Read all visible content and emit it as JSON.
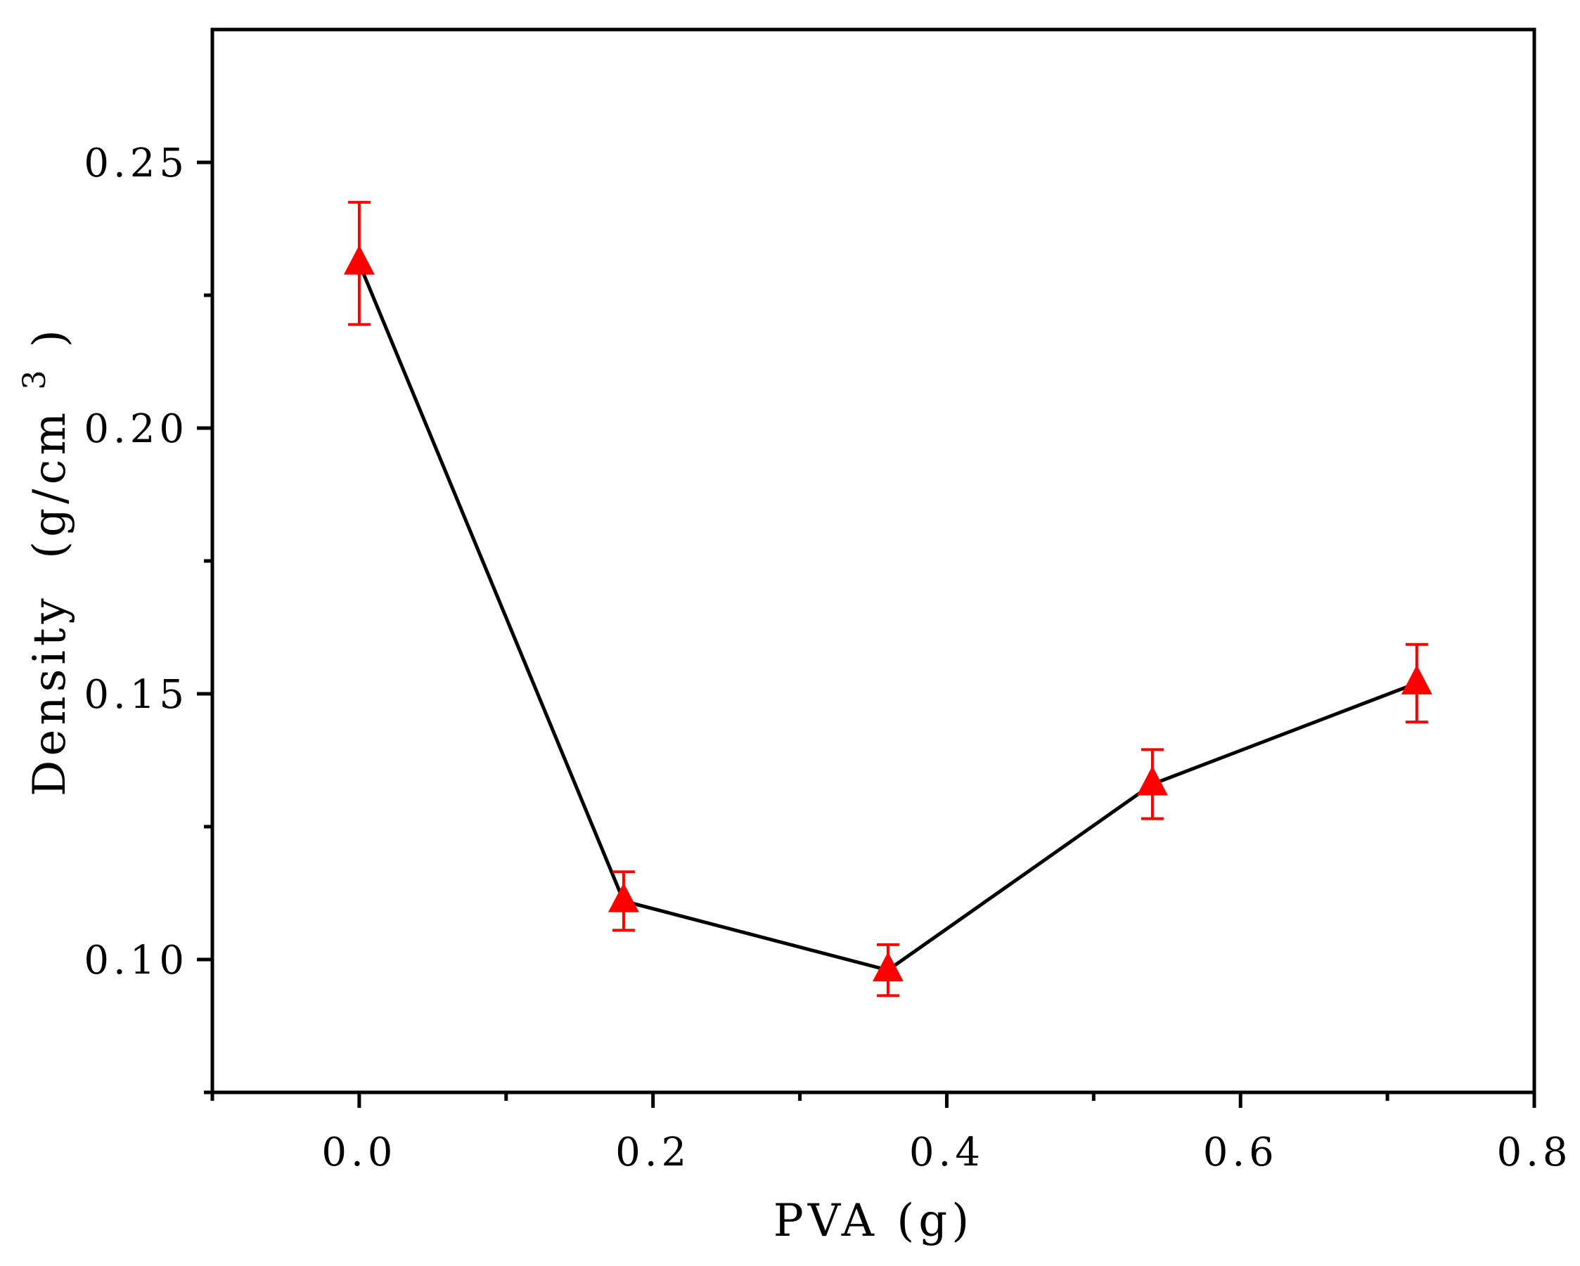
{
  "chart_data": {
    "type": "line",
    "title": "",
    "xlabel": "PVA (g)",
    "ylabel": "Density",
    "ylabel_unit_base": "(g/cm",
    "ylabel_unit_sup": "3",
    "ylabel_unit_close": ")",
    "xlim": [
      -0.1,
      0.8
    ],
    "ylim": [
      0.075,
      0.275
    ],
    "xticks": [
      0.0,
      0.2,
      0.4,
      0.6,
      0.8
    ],
    "xtick_labels": [
      "0.0",
      "0.2",
      "0.4",
      "0.6",
      "0.8"
    ],
    "xminor": [
      -0.1,
      0.1,
      0.3,
      0.5,
      0.7
    ],
    "yticks": [
      0.1,
      0.15,
      0.2,
      0.25
    ],
    "ytick_labels": [
      "0.10",
      "0.15",
      "0.20",
      "0.25"
    ],
    "yminor": [
      0.075,
      0.125,
      0.175,
      0.225
    ],
    "grid": false,
    "series": [
      {
        "name": "Density",
        "line_color": "#000000",
        "marker": "triangle-up",
        "marker_color": "#ff0000",
        "x": [
          0.0,
          0.18,
          0.36,
          0.54,
          0.72
        ],
        "y": [
          0.231,
          0.111,
          0.098,
          0.133,
          0.152
        ],
        "yerr": [
          0.0115,
          0.0055,
          0.0048,
          0.0065,
          0.0073
        ]
      }
    ]
  }
}
